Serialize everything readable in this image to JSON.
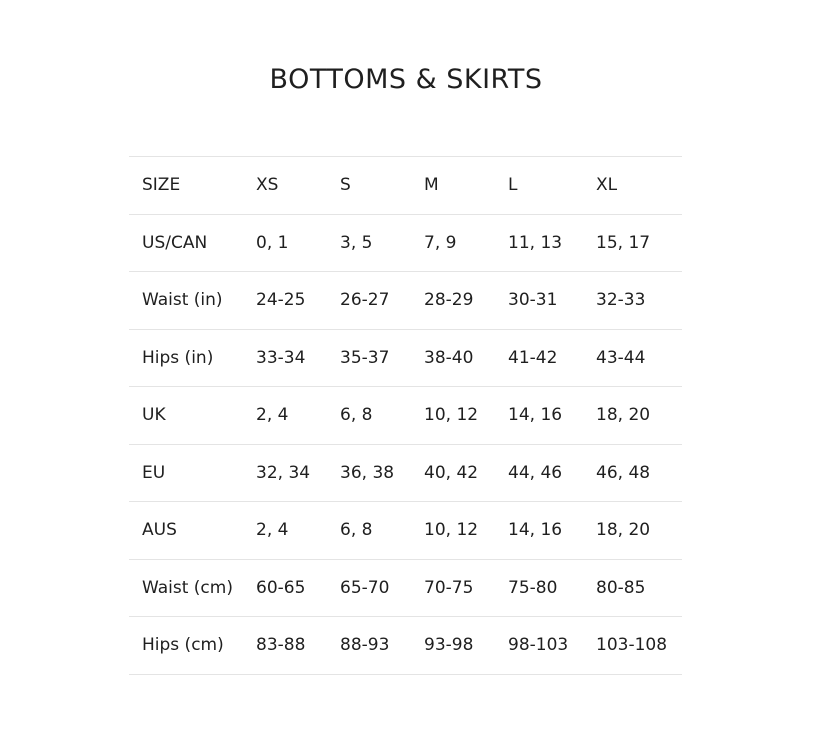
{
  "title": "BOTTOMS & SKIRTS",
  "table": {
    "header": [
      "SIZE",
      "XS",
      "S",
      "M",
      "L",
      "XL"
    ],
    "rows": [
      [
        "US/CAN",
        "0, 1",
        "3, 5",
        "7, 9",
        "11, 13",
        "15, 17"
      ],
      [
        "Waist (in)",
        "24-25",
        "26-27",
        "28-29",
        "30-31",
        "32-33"
      ],
      [
        "Hips (in)",
        "33-34",
        "35-37",
        "38-40",
        "41-42",
        "43-44"
      ],
      [
        "UK",
        "2, 4",
        "6, 8",
        "10, 12",
        "14, 16",
        "18, 20"
      ],
      [
        "EU",
        "32, 34",
        "36, 38",
        "40, 42",
        "44, 46",
        "46, 48"
      ],
      [
        "AUS",
        "2, 4",
        "6, 8",
        "10, 12",
        "14, 16",
        "18, 20"
      ],
      [
        "Waist (cm)",
        "60-65",
        "65-70",
        "70-75",
        "75-80",
        "80-85"
      ],
      [
        "Hips (cm)",
        "83-88",
        "88-93",
        "93-98",
        "98-103",
        "103-108"
      ]
    ]
  }
}
